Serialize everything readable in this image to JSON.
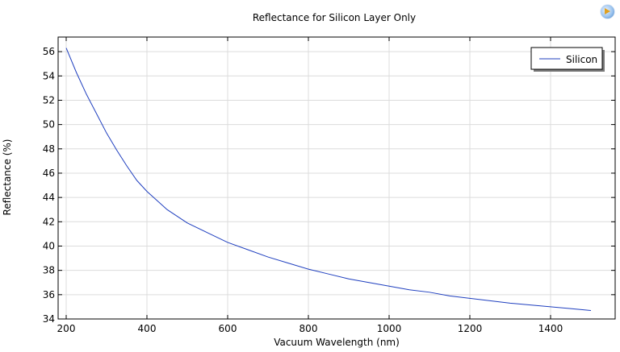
{
  "toolbar": {
    "icon": "app-icon"
  },
  "chart_data": {
    "type": "line",
    "title": "Reflectance for Silicon Layer Only",
    "xlabel": "Vacuum Wavelength (nm)",
    "ylabel": "Reflectance (%)",
    "xlim": [
      180,
      1560
    ],
    "ylim": [
      34,
      57.2
    ],
    "xticks": [
      200,
      400,
      600,
      800,
      1000,
      1200,
      1400
    ],
    "yticks": [
      34,
      36,
      38,
      40,
      42,
      44,
      46,
      48,
      50,
      52,
      54,
      56
    ],
    "grid": true,
    "legend": {
      "position": "top-right",
      "entries": [
        "Silicon"
      ]
    },
    "series": [
      {
        "name": "Silicon",
        "color": "#1f3fbf",
        "x": [
          200,
          225,
          250,
          275,
          300,
          325,
          350,
          375,
          400,
          450,
          500,
          550,
          600,
          650,
          700,
          750,
          800,
          850,
          900,
          950,
          1000,
          1050,
          1100,
          1150,
          1200,
          1250,
          1300,
          1350,
          1400,
          1450,
          1500
        ],
        "y": [
          56.3,
          54.3,
          52.5,
          50.9,
          49.3,
          47.9,
          46.6,
          45.4,
          44.5,
          43.0,
          41.9,
          41.1,
          40.3,
          39.7,
          39.1,
          38.6,
          38.1,
          37.7,
          37.3,
          37.0,
          36.7,
          36.4,
          36.2,
          35.9,
          35.7,
          35.5,
          35.3,
          35.15,
          35.0,
          34.85,
          34.7
        ]
      }
    ]
  }
}
